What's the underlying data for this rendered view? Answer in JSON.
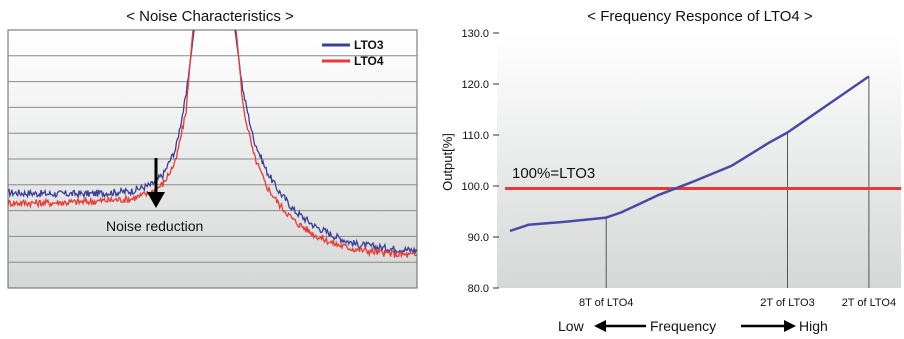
{
  "chart_data": [
    {
      "type": "line",
      "title": "< Noise Characteristics >",
      "xlabel": "",
      "ylabel": "",
      "grid": true,
      "legend_position": "top-right",
      "annotation": "Noise reduction",
      "ylim": [
        0,
        10
      ],
      "xlim": [
        0,
        100
      ],
      "series": [
        {
          "name": "LTO3",
          "color": "#3b3f9a",
          "points": [
            [
              0,
              3.7
            ],
            [
              10,
              3.65
            ],
            [
              20,
              3.65
            ],
            [
              30,
              3.75
            ],
            [
              35,
              4.0
            ],
            [
              38,
              4.4
            ],
            [
              41,
              5.4
            ],
            [
              43.5,
              7.4
            ],
            [
              45.5,
              10.0
            ],
            [
              46.5,
              10.4
            ],
            [
              54.5,
              10.4
            ],
            [
              55.5,
              10.0
            ],
            [
              57.5,
              7.6
            ],
            [
              60,
              5.8
            ],
            [
              63,
              4.6
            ],
            [
              66,
              3.8
            ],
            [
              70,
              3.0
            ],
            [
              75,
              2.4
            ],
            [
              80,
              2.0
            ],
            [
              85,
              1.7
            ],
            [
              92,
              1.55
            ],
            [
              100,
              1.45
            ]
          ]
        },
        {
          "name": "LTO4",
          "color": "#e83a35",
          "points": [
            [
              0,
              3.3
            ],
            [
              10,
              3.3
            ],
            [
              20,
              3.35
            ],
            [
              30,
              3.45
            ],
            [
              35,
              3.7
            ],
            [
              38,
              4.05
            ],
            [
              41,
              4.9
            ],
            [
              43.5,
              6.8
            ],
            [
              45.2,
              10.0
            ],
            [
              46.2,
              10.4
            ],
            [
              54.8,
              10.4
            ],
            [
              55.8,
              10.0
            ],
            [
              57.5,
              7.0
            ],
            [
              60,
              5.2
            ],
            [
              63,
              4.0
            ],
            [
              66,
              3.3
            ],
            [
              70,
              2.6
            ],
            [
              75,
              2.05
            ],
            [
              80,
              1.7
            ],
            [
              85,
              1.5
            ],
            [
              92,
              1.35
            ],
            [
              100,
              1.25
            ]
          ]
        }
      ]
    },
    {
      "type": "line",
      "title": "< Frequency Responce of LTO4 >",
      "xlabel": "Frequency",
      "xlabel_low": "Low",
      "xlabel_high": "High",
      "ylabel": "Output[%]",
      "ylim": [
        80,
        130
      ],
      "yticks": [
        "80.0",
        "90.0",
        "100.0",
        "110.0",
        "120.0",
        "130.0"
      ],
      "ytick_values": [
        80,
        90,
        100,
        110,
        120,
        130
      ],
      "grid": false,
      "xlim": [
        0,
        100
      ],
      "xticks": [
        {
          "label": "8T of LTO4",
          "x": 26
        },
        {
          "label": "2T of LTO3",
          "x": 75
        },
        {
          "label": "2T of LTO4",
          "x": 97
        }
      ],
      "reference_line": {
        "label": "100%=LTO3",
        "y": 99.5,
        "color": "#e83a35"
      },
      "series": [
        {
          "name": "",
          "color": "#4a4aa6",
          "points": [
            [
              0,
              91.2
            ],
            [
              5,
              92.4
            ],
            [
              15,
              93.0
            ],
            [
              26,
              93.8
            ],
            [
              30,
              94.8
            ],
            [
              40,
              98.2
            ],
            [
              50,
              101.0
            ],
            [
              60,
              104.0
            ],
            [
              70,
              108.5
            ],
            [
              75,
              110.5
            ],
            [
              85,
              115.5
            ],
            [
              97,
              121.5
            ]
          ]
        }
      ]
    }
  ]
}
